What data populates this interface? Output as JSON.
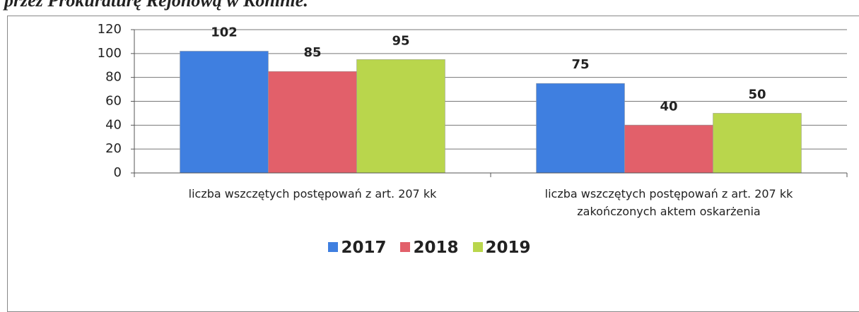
{
  "caption": "przez Prokuraturę Rejonową w Koninie.",
  "chart_data": {
    "type": "bar",
    "categories": [
      "liczba wszczętych postępowań z art. 207 kk",
      "liczba wszczętych postępowań z art. 207 kk\nzakończonych aktem oskarżenia"
    ],
    "series": [
      {
        "name": "2017",
        "color": "#3f7fe0",
        "values": [
          102,
          75
        ]
      },
      {
        "name": "2018",
        "color": "#e2606a",
        "values": [
          85,
          40
        ]
      },
      {
        "name": "2019",
        "color": "#b9d64c",
        "values": [
          95,
          50
        ]
      }
    ],
    "ylim": [
      0,
      120
    ],
    "yticks": [
      0,
      20,
      40,
      60,
      80,
      100,
      120
    ],
    "grid": true,
    "legend": "bottom"
  }
}
